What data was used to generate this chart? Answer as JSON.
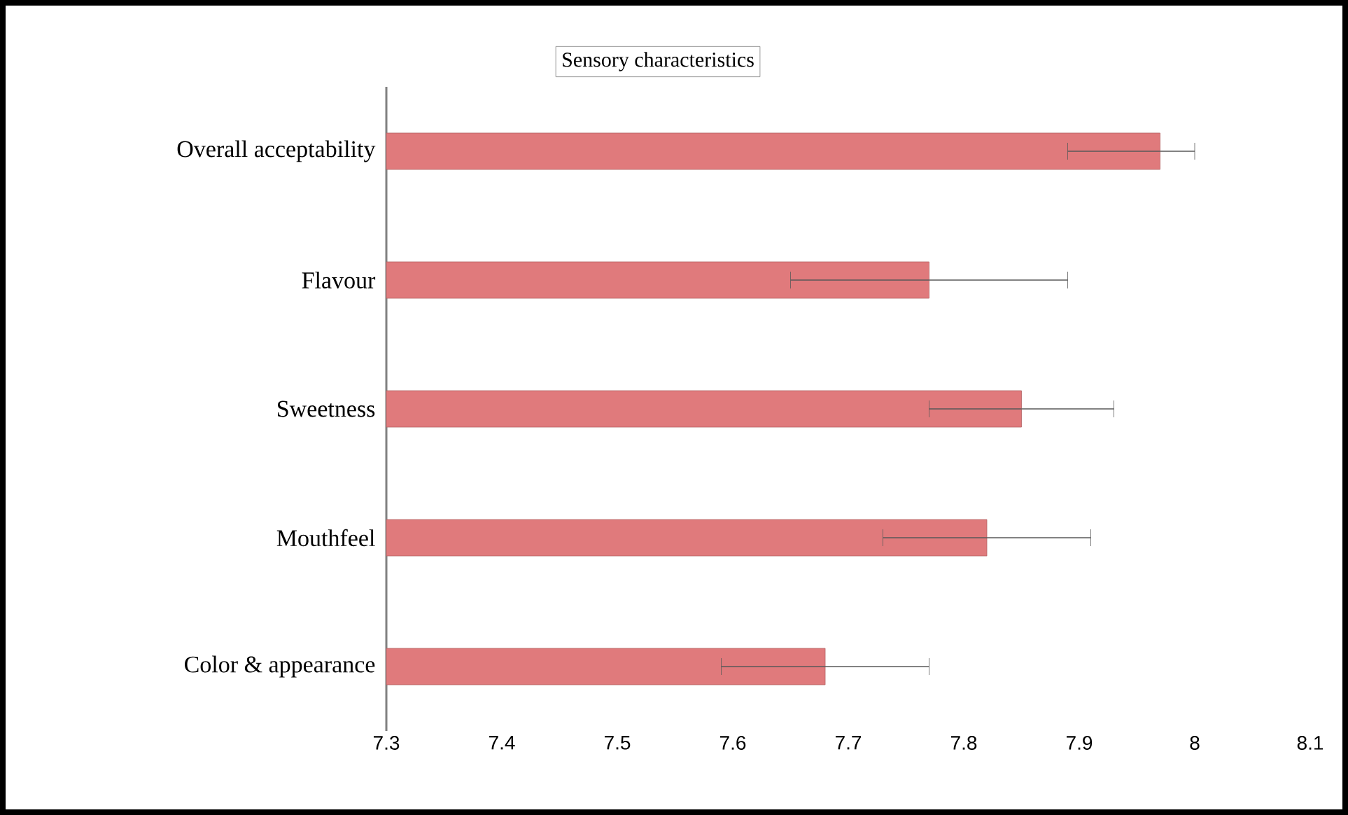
{
  "chart_data": {
    "type": "bar",
    "orientation": "horizontal",
    "title": "Sensory characteristics",
    "categories": [
      "Overall acceptability",
      "Flavour",
      "Sweetness",
      "Mouthfeel",
      "Color & appearance"
    ],
    "values": [
      7.97,
      7.77,
      7.85,
      7.82,
      7.68
    ],
    "errors": [
      [
        7.89,
        8.0
      ],
      0.12,
      0.08,
      0.09,
      0.09
    ],
    "color": "#e07a7c",
    "xlim": [
      7.3,
      8.1
    ],
    "xticks": [
      7.3,
      7.4,
      7.5,
      7.6,
      7.7,
      7.8,
      7.9,
      8,
      8.1
    ],
    "grid": false
  }
}
